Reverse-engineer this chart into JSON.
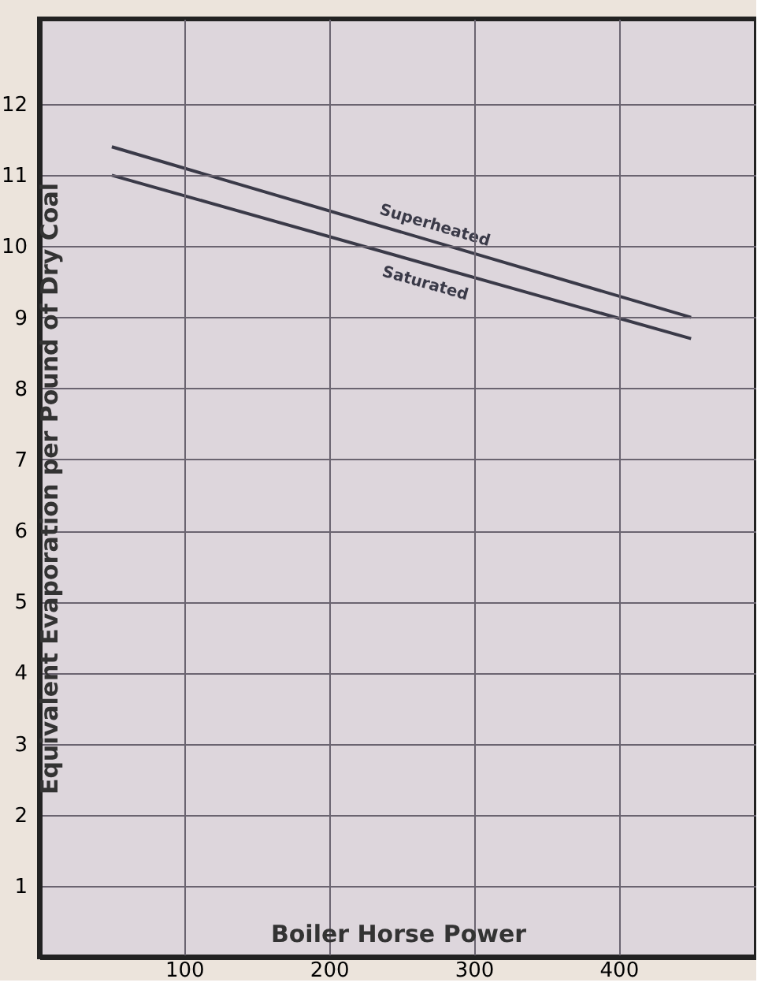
{
  "chart_data": {
    "type": "line",
    "xlabel": "Boiler Horse Power",
    "ylabel": "Equivalent Evaporation per Pound of Dry Coal",
    "x": [
      50,
      450
    ],
    "series": [
      {
        "name": "Superheated",
        "color": "#3a3a48",
        "values": [
          11.4,
          9.0
        ]
      },
      {
        "name": "Saturated",
        "color": "#3a3a48",
        "values": [
          11.0,
          8.7
        ]
      }
    ],
    "xlim": [
      0,
      495
    ],
    "ylim": [
      0,
      13.2
    ],
    "xticks": [
      100,
      200,
      300,
      400
    ],
    "yticks": [
      1,
      2,
      3,
      4,
      5,
      6,
      7,
      8,
      9,
      10,
      11,
      12
    ],
    "grid": true,
    "legend": false,
    "marker": "none",
    "line_style": "solid"
  }
}
